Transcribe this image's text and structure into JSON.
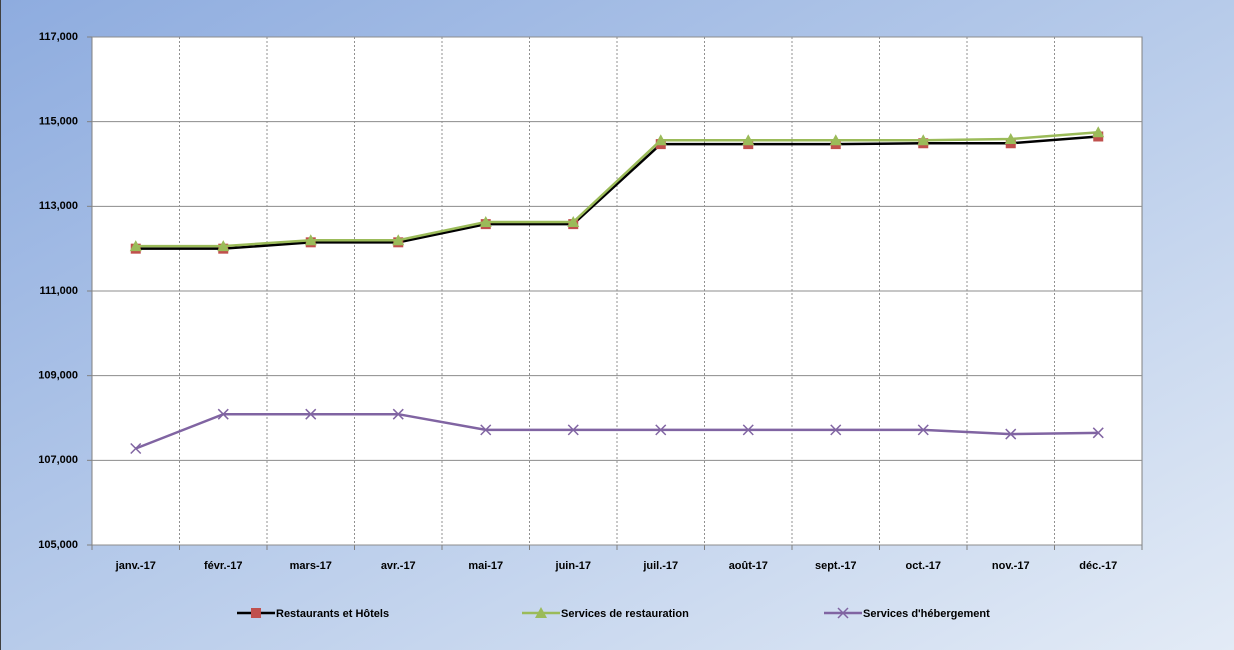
{
  "chart_data": {
    "type": "line",
    "categories": [
      "janv.-17",
      "févr.-17",
      "mars-17",
      "avr.-17",
      "mai-17",
      "juin-17",
      "juil.-17",
      "août-17",
      "sept.-17",
      "oct.-17",
      "nov.-17",
      "déc.-17"
    ],
    "series": [
      {
        "name": "Restaurants et Hôtels",
        "color": "#000000",
        "marker": "square",
        "marker_color": "#c0504d",
        "values": [
          112000,
          112000,
          112150,
          112150,
          112580,
          112580,
          114470,
          114470,
          114470,
          114490,
          114490,
          114650
        ]
      },
      {
        "name": "Services de restauration",
        "color": "#9bbb59",
        "marker": "triangle",
        "marker_color": "#9bbb59",
        "values": [
          112060,
          112060,
          112200,
          112200,
          112630,
          112630,
          114560,
          114560,
          114560,
          114560,
          114590,
          114750
        ]
      },
      {
        "name": "Services d'hébergement",
        "color": "#8064a2",
        "marker": "x",
        "marker_color": "#8064a2",
        "values": [
          107280,
          108090,
          108090,
          108090,
          107720,
          107720,
          107720,
          107720,
          107720,
          107720,
          107620,
          107650
        ]
      }
    ],
    "ylim": [
      105000,
      117000
    ],
    "yticks": [
      {
        "value": 105000,
        "label": "105,000"
      },
      {
        "value": 107000,
        "label": "107,000"
      },
      {
        "value": 109000,
        "label": "109,000"
      },
      {
        "value": 111000,
        "label": "111,000"
      },
      {
        "value": 113000,
        "label": "113,000"
      },
      {
        "value": 115000,
        "label": "115,000"
      },
      {
        "value": 117000,
        "label": "117,000"
      }
    ],
    "grid": true,
    "legend": "bottom"
  }
}
